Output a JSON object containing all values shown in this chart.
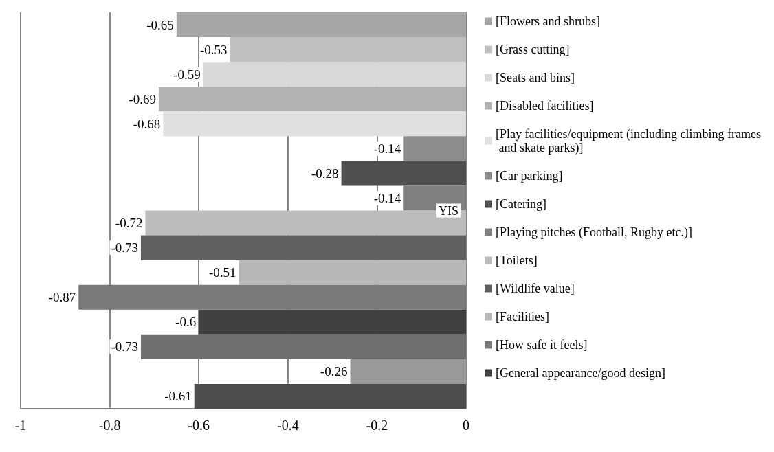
{
  "chart_data": {
    "type": "bar",
    "orientation": "horizontal",
    "categories": [
      "YIS"
    ],
    "series": [
      {
        "name": "[Flowers and shrubs]",
        "color": "#a6a6a6",
        "values": [
          -0.65
        ]
      },
      {
        "name": "[Grass cutting]",
        "color": "#bfbfbf",
        "values": [
          -0.53
        ]
      },
      {
        "name": "[Seats and bins]",
        "color": "#d9d9d9",
        "values": [
          -0.59
        ]
      },
      {
        "name": "[Disabled facilities]",
        "color": "#b2b2b2",
        "values": [
          -0.69
        ]
      },
      {
        "name": "[Play facilities/equipment (including climbing frames and skate parks)]",
        "color": "#e0e0e0",
        "values": [
          -0.68
        ]
      },
      {
        "name": "[Car parking]",
        "color": "#8c8c8c",
        "values": [
          -0.14
        ]
      },
      {
        "name": "[Catering]",
        "color": "#505050",
        "values": [
          -0.28
        ]
      },
      {
        "name": "[Playing pitches (Football, Rugby etc.)]",
        "color": "#808080",
        "values": [
          -0.14
        ]
      },
      {
        "name": "[Toilets]",
        "color": "#bcbcbc",
        "values": [
          -0.72
        ]
      },
      {
        "name": "[Wildlife value]",
        "color": "#606060",
        "values": [
          -0.73
        ]
      },
      {
        "name": "[Facilities]",
        "color": "#b8b8b8",
        "values": [
          -0.51
        ]
      },
      {
        "name": "[How safe it feels]",
        "color": "#7a7a7a",
        "values": [
          -0.87
        ]
      },
      {
        "name": "[General appearance/good design]",
        "color": "#404040",
        "values": [
          -0.6
        ]
      },
      {
        "color": "#6e6e6e",
        "values": [
          -0.73
        ]
      },
      {
        "color": "#999999",
        "values": [
          -0.26
        ]
      },
      {
        "color": "#4d4d4d",
        "values": [
          -0.61
        ]
      }
    ],
    "xlim": [
      -1,
      0
    ],
    "xticks": [
      -1,
      -0.8,
      -0.6,
      -0.4,
      -0.2,
      0
    ],
    "grid": "x",
    "legend": "right",
    "data_labels": true
  }
}
